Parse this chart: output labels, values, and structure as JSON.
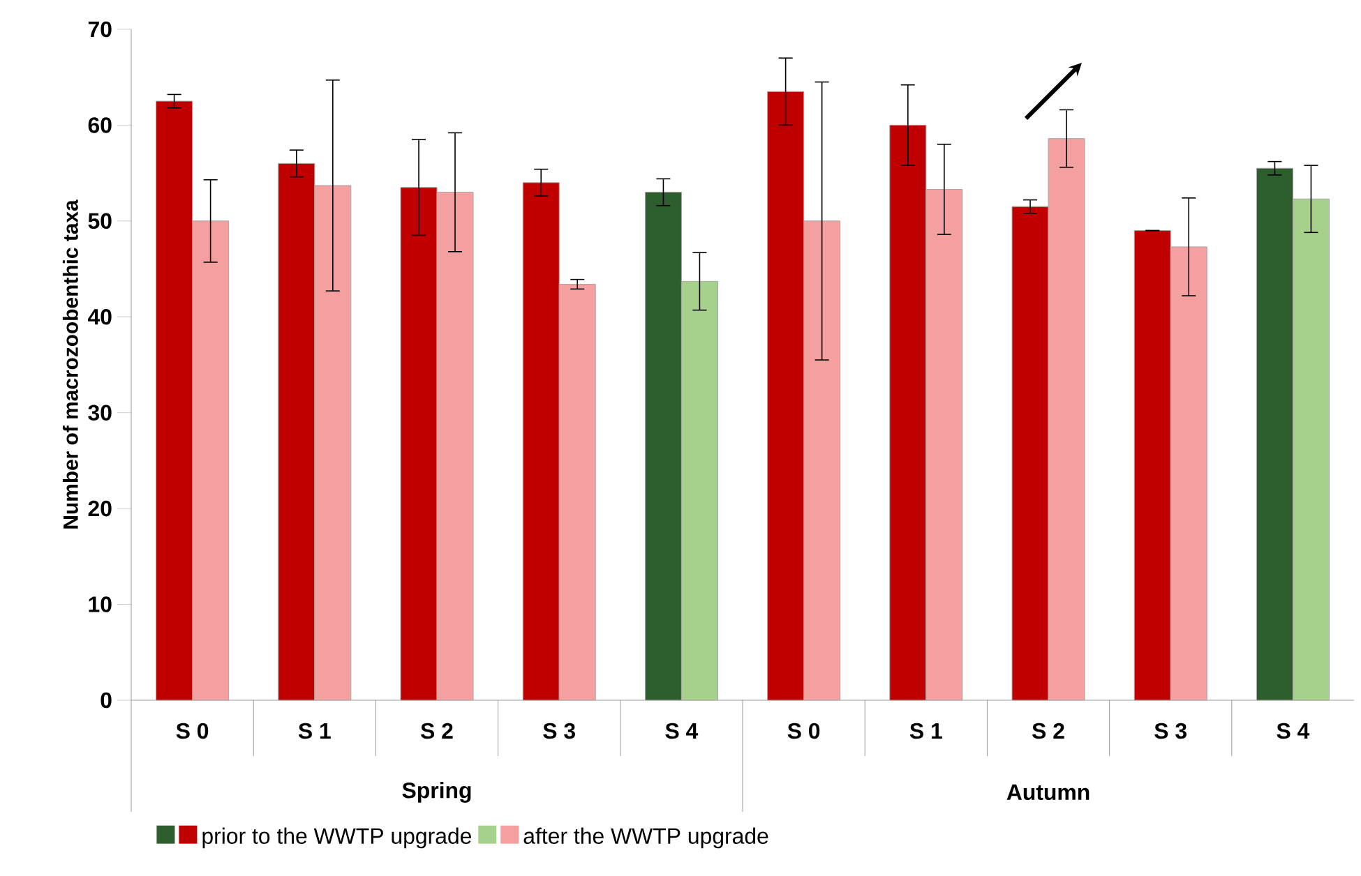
{
  "chart_data": {
    "type": "bar",
    "ylabel": "Number of macrozoobenthic taxa",
    "categories": [
      "S 0",
      "S 1",
      "S 2",
      "S 3",
      "S 4",
      "S 0",
      "S 1",
      "S 2",
      "S 3",
      "S 4"
    ],
    "annotations": [
      "Spring",
      "Autumn"
    ],
    "series": [
      {
        "name": "prior to the WWTP upgrade",
        "color": "#c00000",
        "colors": [
          "#c00000",
          "#c00000",
          "#c00000",
          "#c00000",
          "#2e5e2e",
          "#c00000",
          "#c00000",
          "#c00000",
          "#c00000",
          "#2e5e2e"
        ],
        "values": [
          62.5,
          56,
          53.5,
          54,
          53,
          63.5,
          60,
          51.5,
          49,
          55.5
        ],
        "errors": [
          0.7,
          1.4,
          5,
          1.4,
          1.4,
          3.5,
          4.2,
          0.7,
          0,
          0.7
        ]
      },
      {
        "name": "after the WWTP upgrade",
        "color": "#f4a0a0",
        "colors": [
          "#f4a0a0",
          "#f4a0a0",
          "#f4a0a0",
          "#f4a0a0",
          "#a6d18a",
          "#f4a0a0",
          "#f4a0a0",
          "#f4a0a0",
          "#f4a0a0",
          "#a6d18a"
        ],
        "values": [
          50,
          53.7,
          53,
          43.4,
          43.7,
          50,
          53.3,
          58.6,
          47.3,
          52.3
        ],
        "errors": [
          4.3,
          11,
          6.2,
          0.5,
          3,
          14.5,
          4.7,
          3,
          5.1,
          3.5
        ]
      }
    ],
    "ylim": [
      0,
      70
    ],
    "yticks": [
      0,
      10,
      20,
      30,
      40,
      50,
      60,
      70
    ],
    "legend": "bottom"
  }
}
